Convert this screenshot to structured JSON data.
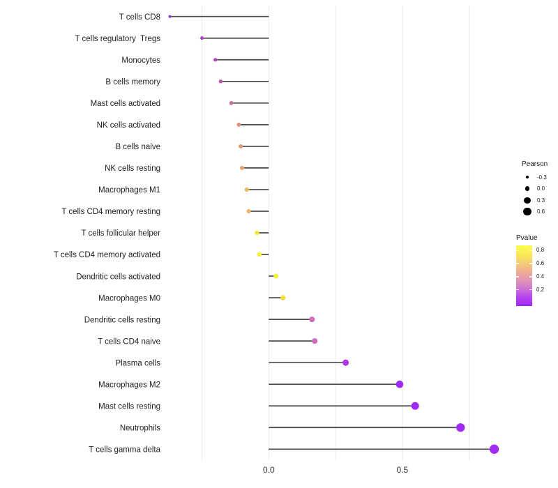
{
  "chart_data": {
    "type": "lollipop",
    "orientation": "horizontal",
    "title": "",
    "xlabel": "",
    "ylabel": "",
    "xlim": [
      -0.42,
      0.92
    ],
    "grid": "on",
    "gridline_values": [
      -0.25,
      0,
      0.25,
      0.5,
      0.75
    ],
    "x_ticks": [
      {
        "value": 0.0,
        "label": "0.0"
      },
      {
        "value": 0.5,
        "label": "0.5"
      }
    ],
    "points": [
      {
        "label": "T cells CD8",
        "pearson": -0.37,
        "color": "#8632D2"
      },
      {
        "label": "T cells regulatory  Tregs",
        "pearson": -0.25,
        "color": "#A83BCB"
      },
      {
        "label": "Monocytes",
        "pearson": -0.2,
        "color": "#B148BB"
      },
      {
        "label": "B cells memory",
        "pearson": -0.18,
        "color": "#BB55AE"
      },
      {
        "label": "Mast cells activated",
        "pearson": -0.14,
        "color": "#CE6E9B"
      },
      {
        "label": "NK cells activated",
        "pearson": -0.112,
        "color": "#DD9178"
      },
      {
        "label": "B cells naive",
        "pearson": -0.105,
        "color": "#E19B72"
      },
      {
        "label": "NK cells resting",
        "pearson": -0.1,
        "color": "#E5A371"
      },
      {
        "label": "Macrophages M1",
        "pearson": -0.082,
        "color": "#EAB563"
      },
      {
        "label": "T cells CD4 memory resting",
        "pearson": -0.075,
        "color": "#EBB765"
      },
      {
        "label": "T cells follicular helper",
        "pearson": -0.044,
        "color": "#F2E93C"
      },
      {
        "label": "T cells CD4 memory activated",
        "pearson": -0.035,
        "color": "#F5F13B"
      },
      {
        "label": "Dendritic cells activated",
        "pearson": 0.027,
        "color": "#F6F23B"
      },
      {
        "label": "Macrophages M0",
        "pearson": 0.053,
        "color": "#F1DC3E"
      },
      {
        "label": "Dendritic cells resting",
        "pearson": 0.162,
        "color": "#CF6DBE"
      },
      {
        "label": "T cells CD4 naive",
        "pearson": 0.172,
        "color": "#CE6CBF"
      },
      {
        "label": "Plasma cells",
        "pearson": 0.288,
        "color": "#AC36DC"
      },
      {
        "label": "Macrophages M2",
        "pearson": 0.49,
        "color": "#A02BF0"
      },
      {
        "label": "Mast cells resting",
        "pearson": 0.548,
        "color": "#A02BF0"
      },
      {
        "label": "Neutrophils",
        "pearson": 0.718,
        "color": "#A12CF2"
      },
      {
        "label": "T cells gamma delta",
        "pearson": 0.844,
        "color": "#A12CF2"
      }
    ],
    "legend_size": {
      "title": "Pearson",
      "entries": [
        {
          "label": "-0.3",
          "value": -0.3
        },
        {
          "label": "0.0",
          "value": 0.0
        },
        {
          "label": "0.3",
          "value": 0.3
        },
        {
          "label": "0.6",
          "value": 0.6
        }
      ]
    },
    "legend_color": {
      "title": "Pvalue",
      "tick_labels": [
        "0.8",
        "0.6",
        "0.4",
        "0.2"
      ],
      "gradient_stops": [
        "#FCFD4B",
        "#F9E956",
        "#F6CE74",
        "#EFAE93",
        "#E295B4",
        "#CE73D2",
        "#B544EE",
        "#A327F7"
      ]
    },
    "colors": {
      "gridline": "#EAEAEA",
      "stem": "#484848",
      "category_text": "#1F1F1F",
      "tick_text": "#333333"
    }
  }
}
